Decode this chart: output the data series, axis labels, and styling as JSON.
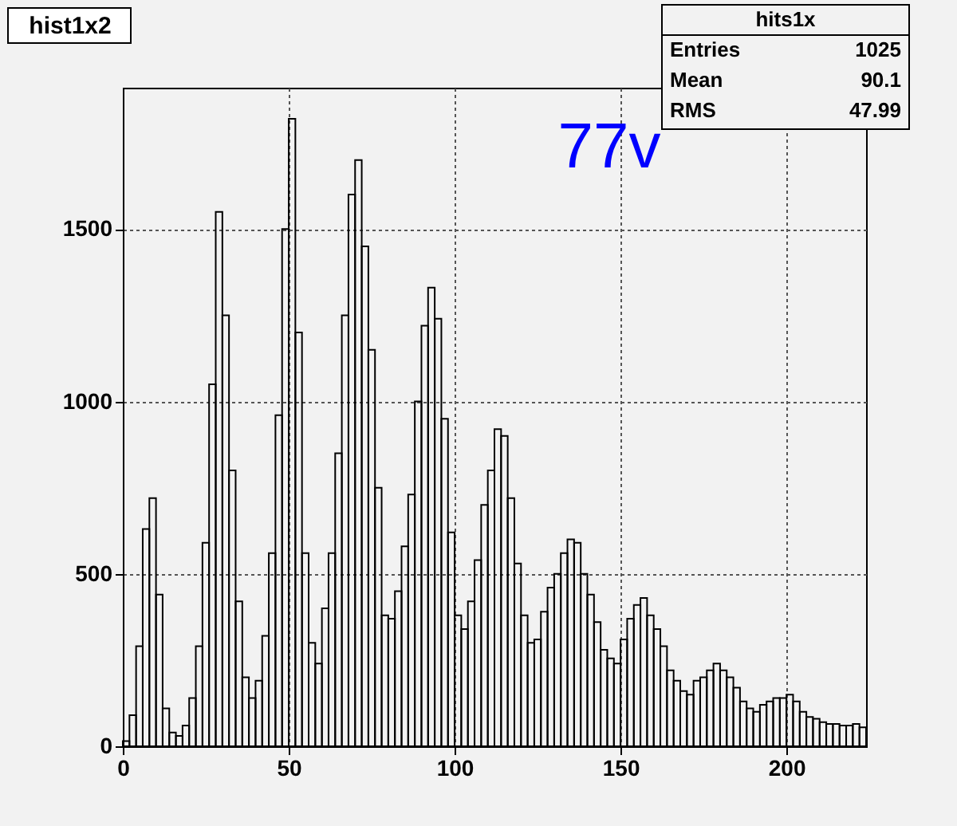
{
  "chart_data": {
    "type": "histogram",
    "title": "hist1x2",
    "annotations": [
      "77v",
      "hits1x",
      "Entries",
      "1025",
      "Mean",
      "90.1",
      "RMS",
      "47.99"
    ],
    "bins": [
      0,
      2,
      4,
      6,
      8,
      10,
      12,
      14,
      16,
      18,
      20,
      22,
      24,
      26,
      28,
      30,
      32,
      34,
      36,
      38,
      40,
      42,
      44,
      46,
      48,
      50,
      52,
      54,
      56,
      58,
      60,
      62,
      64,
      66,
      68,
      70,
      72,
      74,
      76,
      78,
      80,
      82,
      84,
      86,
      88,
      90,
      92,
      94,
      96,
      98,
      100,
      102,
      104,
      106,
      108,
      110,
      112,
      114,
      116,
      118,
      120,
      122,
      124,
      126,
      128,
      130,
      132,
      134,
      136,
      138,
      140,
      142,
      144,
      146,
      148,
      150,
      152,
      154,
      156,
      158,
      160,
      162,
      164,
      166,
      168,
      170,
      172,
      174,
      176,
      178,
      180,
      182,
      184,
      186,
      188,
      190,
      192,
      194,
      196,
      198,
      200,
      202,
      204,
      206,
      208,
      210,
      212,
      214,
      216,
      218,
      220,
      222,
      224
    ],
    "values": [
      15,
      90,
      290,
      630,
      720,
      440,
      110,
      40,
      30,
      60,
      140,
      290,
      590,
      1050,
      1550,
      1250,
      800,
      420,
      200,
      140,
      190,
      320,
      560,
      960,
      1500,
      1820,
      1200,
      560,
      300,
      240,
      400,
      560,
      850,
      1250,
      1600,
      1700,
      1450,
      1150,
      750,
      380,
      370,
      450,
      580,
      730,
      1000,
      1220,
      1330,
      1240,
      950,
      620,
      380,
      340,
      420,
      540,
      700,
      800,
      920,
      900,
      720,
      530,
      380,
      300,
      310,
      390,
      460,
      500,
      560,
      600,
      590,
      500,
      440,
      360,
      280,
      255,
      240,
      310,
      370,
      410,
      430,
      380,
      340,
      290,
      220,
      190,
      160,
      150,
      190,
      200,
      220,
      240,
      220,
      200,
      170,
      130,
      110,
      100,
      120,
      130,
      140,
      140,
      150,
      130,
      100,
      85,
      80,
      70,
      65,
      65,
      60,
      60,
      65,
      55
    ],
    "color": "#000000",
    "xlim": [
      0,
      224
    ],
    "ylim": [
      0,
      1910
    ],
    "xticks": [
      0,
      50,
      100,
      150,
      200
    ],
    "yticks": [
      0,
      500,
      1000,
      1500
    ],
    "grid": true
  }
}
